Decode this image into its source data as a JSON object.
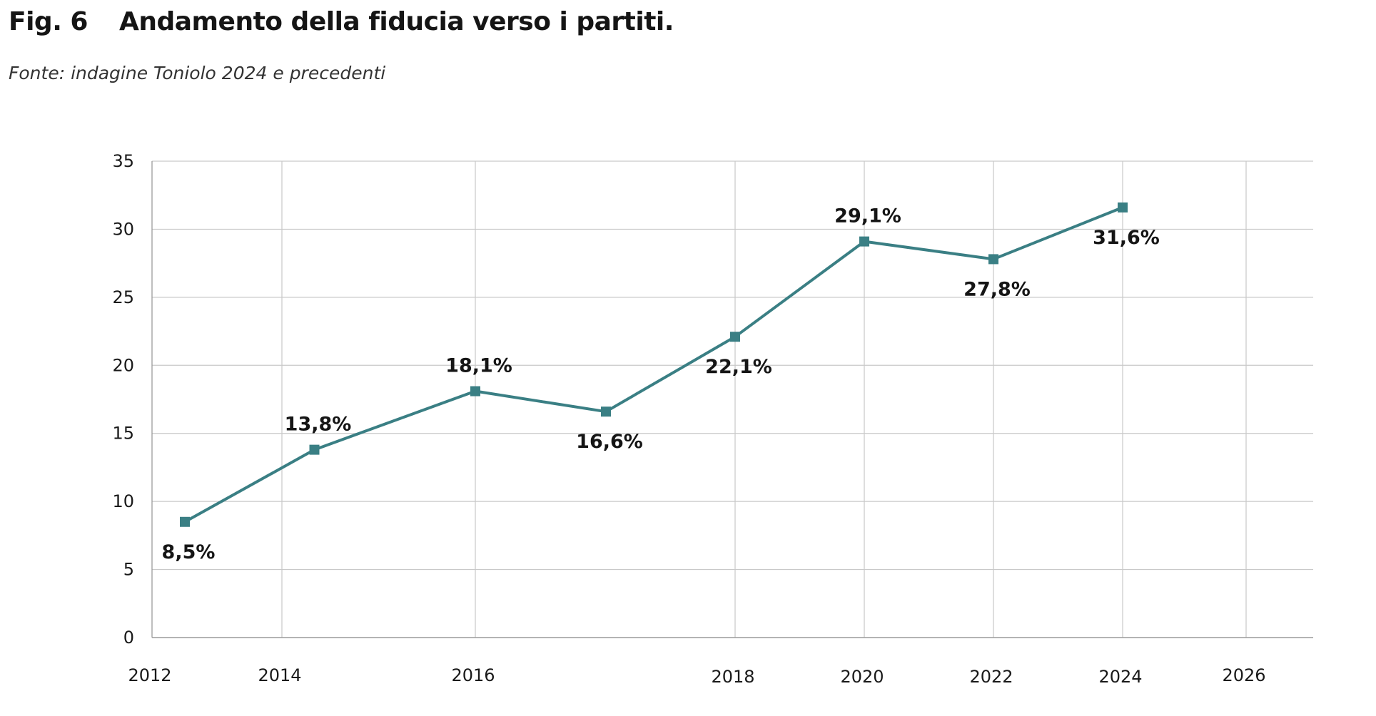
{
  "figure": {
    "number": "Fig. 6",
    "title": "Andamento della fiducia verso i partiti.",
    "source": "Fonte: indagine Toniolo 2024 e precedenti"
  },
  "chart_data": {
    "type": "line",
    "title": "Andamento della fiducia verso i partiti.",
    "xlabel": "",
    "ylabel": "",
    "ylim": [
      0,
      35
    ],
    "y_ticks": [
      0,
      5,
      10,
      15,
      20,
      25,
      30,
      35
    ],
    "x_ticks": [
      {
        "label": "2012",
        "value": 2012
      },
      {
        "label": "2014",
        "value": 2014
      },
      {
        "label": "2016",
        "value": 2016
      },
      {
        "label": "2018",
        "value": 2018
      },
      {
        "label": "2020",
        "value": 2020
      },
      {
        "label": "2022",
        "value": 2022
      },
      {
        "label": "2024",
        "value": 2024
      },
      {
        "label": "2026",
        "value": 2026
      }
    ],
    "grid": true,
    "series": [
      {
        "color": "#3a7f84",
        "marker": "square",
        "points": [
          {
            "x": 2012.5,
            "y": 8.5,
            "label": "8,5%",
            "label_pos": "below"
          },
          {
            "x": 2014.5,
            "y": 13.8,
            "label": "13,8%",
            "label_pos": "above"
          },
          {
            "x": 2016.0,
            "y": 18.1,
            "label": "18,1%",
            "label_pos": "above"
          },
          {
            "x": 2017.0,
            "y": 16.6,
            "label": "16,6%",
            "label_pos": "below"
          },
          {
            "x": 2018.0,
            "y": 22.1,
            "label": "22,1%",
            "label_pos": "below"
          },
          {
            "x": 2020.0,
            "y": 29.1,
            "label": "29,1%",
            "label_pos": "above"
          },
          {
            "x": 2022.0,
            "y": 27.8,
            "label": "27,8%",
            "label_pos": "below"
          },
          {
            "x": 2024.0,
            "y": 31.6,
            "label": "31,6%",
            "label_pos": "below"
          }
        ]
      }
    ],
    "colors": {
      "line": "#3a7f84",
      "grid": "#c9c9c9",
      "axis": "#9a9a9a"
    }
  }
}
